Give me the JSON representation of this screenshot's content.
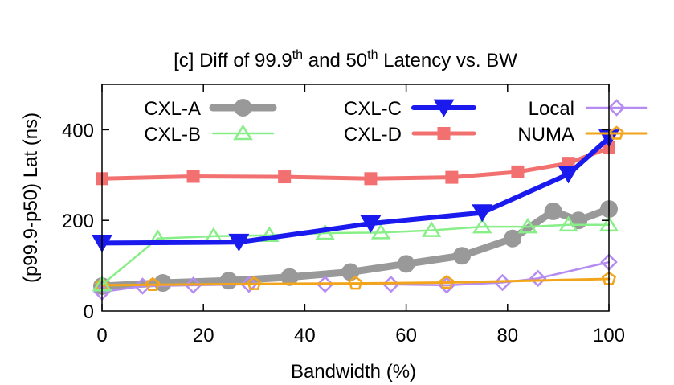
{
  "chart_data": {
    "type": "line",
    "title_main": "[c] Diff of 99.9",
    "title_sup1": "th",
    "title_mid": " and 50",
    "title_sup2": "th",
    "title_end": " Latency vs. BW",
    "xlabel": "Bandwidth (%)",
    "ylabel": "(p99.9-p50) Lat (ns)",
    "xlim": [
      0,
      100
    ],
    "ylim": [
      0,
      500
    ],
    "xticks": [
      "0",
      "20",
      "40",
      "60",
      "80",
      "100"
    ],
    "yticks": [
      "0",
      "200",
      "400"
    ],
    "legend_placement": "top-left",
    "series": [
      {
        "name": "CXL-A",
        "color": "#999999",
        "marker": "circle",
        "points": [
          [
            0,
            55
          ],
          [
            12,
            62
          ],
          [
            25,
            67
          ],
          [
            37,
            75
          ],
          [
            49,
            86
          ],
          [
            60,
            104
          ],
          [
            71,
            122
          ],
          [
            81,
            160
          ],
          [
            89,
            220
          ],
          [
            94,
            200
          ],
          [
            100,
            225
          ]
        ]
      },
      {
        "name": "CXL-C",
        "color": "#1a1aee",
        "marker": "triangle-down",
        "points": [
          [
            0,
            150
          ],
          [
            27,
            152
          ],
          [
            53,
            193
          ],
          [
            75,
            217
          ],
          [
            92,
            302
          ],
          [
            100,
            382
          ]
        ]
      },
      {
        "name": "Local",
        "color": "#b58cf2",
        "marker": "diamond",
        "points": [
          [
            0,
            42
          ],
          [
            8,
            55
          ],
          [
            18,
            57
          ],
          [
            29,
            59
          ],
          [
            44,
            59
          ],
          [
            57,
            59
          ],
          [
            68,
            57
          ],
          [
            79,
            63
          ],
          [
            86,
            72
          ],
          [
            100,
            108
          ]
        ]
      },
      {
        "name": "CXL-B",
        "color": "#88ee88",
        "marker": "triangle-up",
        "points": [
          [
            0,
            58
          ],
          [
            11,
            160
          ],
          [
            22,
            165
          ],
          [
            33,
            167
          ],
          [
            44,
            172
          ],
          [
            55,
            173
          ],
          [
            65,
            178
          ],
          [
            75,
            186
          ],
          [
            84,
            186
          ],
          [
            92,
            190
          ],
          [
            100,
            190
          ]
        ]
      },
      {
        "name": "CXL-D",
        "color": "#f27070",
        "marker": "square",
        "points": [
          [
            0,
            292
          ],
          [
            18,
            297
          ],
          [
            36,
            296
          ],
          [
            53,
            292
          ],
          [
            69,
            295
          ],
          [
            82,
            307
          ],
          [
            92,
            326
          ],
          [
            100,
            360
          ]
        ]
      },
      {
        "name": "NUMA",
        "color": "#f2a51a",
        "marker": "pentagon",
        "points": [
          [
            0,
            57
          ],
          [
            10,
            58
          ],
          [
            30,
            60
          ],
          [
            50,
            61
          ],
          [
            68,
            63
          ],
          [
            100,
            71
          ]
        ]
      }
    ]
  }
}
